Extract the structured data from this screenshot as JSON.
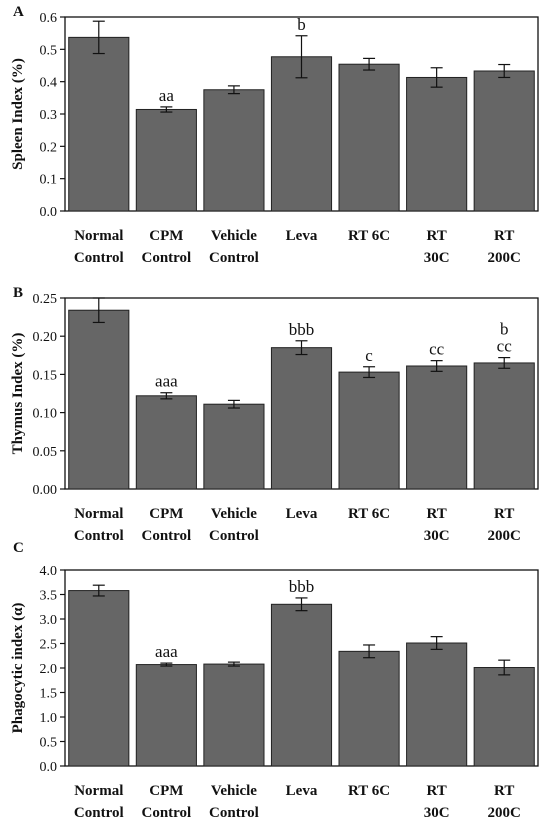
{
  "chart_data": [
    {
      "type": "bar",
      "panel": "A",
      "ylabel": "Spleen Index (%)",
      "ylim": [
        0,
        0.6
      ],
      "yticks": [
        "0.0",
        "0.1",
        "0.2",
        "0.3",
        "0.4",
        "0.5",
        "0.6"
      ],
      "categories": [
        [
          "Normal",
          "Control"
        ],
        [
          "CPM",
          "Control"
        ],
        [
          "Vehicle",
          "Control"
        ],
        [
          "Leva",
          ""
        ],
        [
          "RT 6C",
          ""
        ],
        [
          "RT",
          "30C"
        ],
        [
          "RT",
          "200C"
        ]
      ],
      "values": [
        0.537,
        0.314,
        0.375,
        0.477,
        0.454,
        0.413,
        0.433
      ],
      "errors": [
        0.05,
        0.008,
        0.012,
        0.065,
        0.018,
        0.03,
        0.02
      ],
      "annotations": [
        [
          "",
          ""
        ],
        [
          "",
          "aa"
        ],
        [
          "",
          ""
        ],
        [
          "",
          "b"
        ],
        [
          "",
          ""
        ],
        [
          "",
          ""
        ],
        [
          "",
          ""
        ]
      ],
      "bar_color": "#666666"
    },
    {
      "type": "bar",
      "panel": "B",
      "ylabel": "Thymus Index (%)",
      "ylim": [
        0,
        0.25
      ],
      "yticks": [
        "0.00",
        "0.05",
        "0.10",
        "0.15",
        "0.20",
        "0.25"
      ],
      "categories": [
        [
          "Normal",
          "Control"
        ],
        [
          "CPM",
          "Control"
        ],
        [
          "Vehicle",
          "Control"
        ],
        [
          "Leva",
          ""
        ],
        [
          "RT 6C",
          ""
        ],
        [
          "RT",
          "30C"
        ],
        [
          "RT",
          "200C"
        ]
      ],
      "values": [
        0.234,
        0.122,
        0.111,
        0.185,
        0.153,
        0.161,
        0.165
      ],
      "errors": [
        0.016,
        0.004,
        0.005,
        0.009,
        0.007,
        0.007,
        0.007
      ],
      "annotations": [
        [
          "",
          ""
        ],
        [
          "",
          "aaa"
        ],
        [
          "",
          ""
        ],
        [
          "",
          "bbb"
        ],
        [
          "",
          "c"
        ],
        [
          "",
          "cc"
        ],
        [
          "b",
          "cc"
        ]
      ],
      "bar_color": "#666666"
    },
    {
      "type": "bar",
      "panel": "C",
      "ylabel": "Phagocytic index (α)",
      "ylim": [
        0,
        4.0
      ],
      "yticks": [
        "0.0",
        "0.5",
        "1.0",
        "1.5",
        "2.0",
        "2.5",
        "3.0",
        "3.5",
        "4.0"
      ],
      "categories": [
        [
          "Normal",
          "Control"
        ],
        [
          "CPM",
          "Control"
        ],
        [
          "Vehicle",
          "Control"
        ],
        [
          "Leva",
          ""
        ],
        [
          "RT 6C",
          ""
        ],
        [
          "RT",
          "30C"
        ],
        [
          "RT",
          "200C"
        ]
      ],
      "values": [
        3.58,
        2.07,
        2.08,
        3.3,
        2.34,
        2.51,
        2.01
      ],
      "errors": [
        0.11,
        0.03,
        0.04,
        0.13,
        0.13,
        0.13,
        0.15
      ],
      "annotations": [
        [
          "",
          ""
        ],
        [
          "",
          "aaa"
        ],
        [
          "",
          ""
        ],
        [
          "",
          "bbb"
        ],
        [
          "",
          ""
        ],
        [
          "",
          ""
        ],
        [
          "",
          ""
        ]
      ],
      "bar_color": "#666666"
    }
  ]
}
